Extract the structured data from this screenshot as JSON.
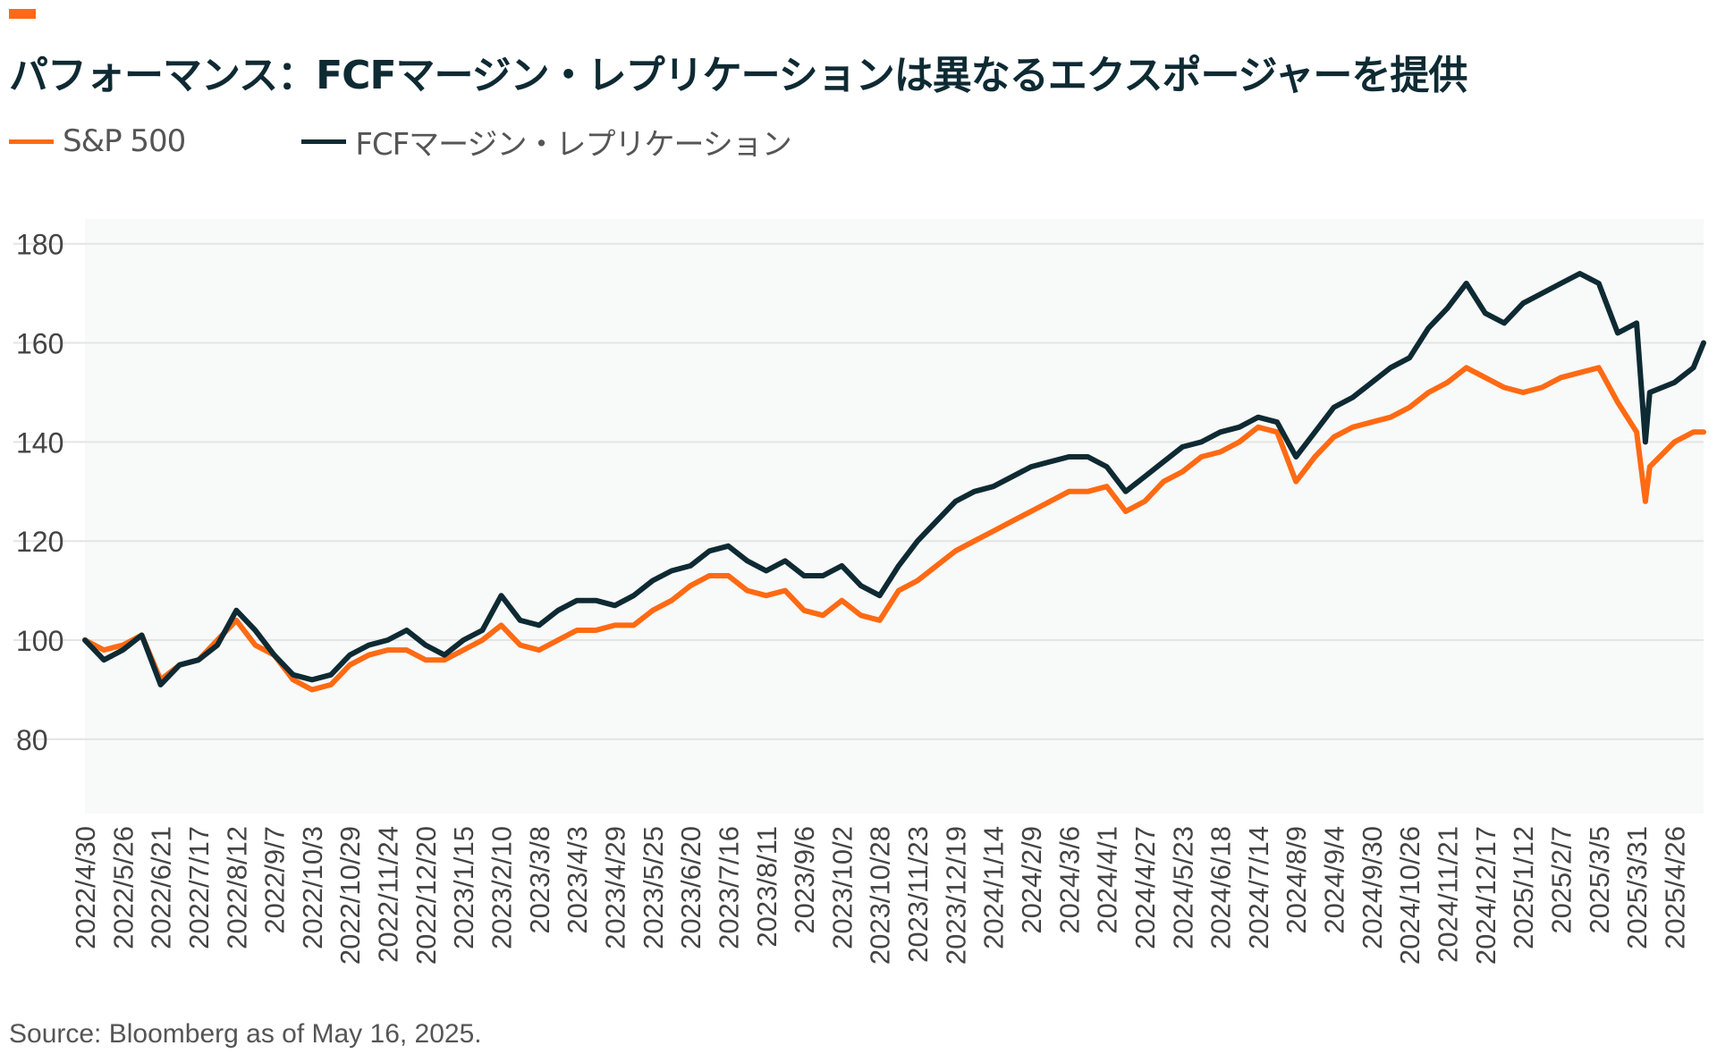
{
  "header": {
    "title": "パフォーマンス：FCFマージン・レプリケーションは異なるエクスポージャーを提供"
  },
  "colors": {
    "accent": "#ff6a13",
    "sp500": "#ff6a13",
    "fcf": "#0e2a33",
    "plot_bg": "#f8f9f9",
    "grid": "#e4e4e4"
  },
  "footer": {
    "source": "Source: Bloomberg as of May 16, 2025."
  },
  "chart_data": {
    "type": "line",
    "title": "パフォーマンス：FCFマージン・レプリケーションは異なるエクスポージャーを提供",
    "xlabel": "",
    "ylabel": "",
    "ylim": [
      65,
      185
    ],
    "yticks": [
      80,
      100,
      120,
      140,
      160,
      180
    ],
    "grid": true,
    "legend_position": "top-left",
    "x_tick_labels": [
      "2022/4/30",
      "2022/5/26",
      "2022/6/21",
      "2022/7/17",
      "2022/8/12",
      "2022/9/7",
      "2022/10/3",
      "2022/10/29",
      "2022/11/24",
      "2022/12/20",
      "2023/1/15",
      "2023/2/10",
      "2023/3/8",
      "2023/4/3",
      "2023/4/29",
      "2023/5/25",
      "2023/6/20",
      "2023/7/16",
      "2023/8/11",
      "2023/9/6",
      "2023/10/2",
      "2023/10/28",
      "2023/11/23",
      "2023/12/19",
      "2024/1/14",
      "2024/2/9",
      "2024/3/6",
      "2024/4/1",
      "2024/4/27",
      "2024/5/23",
      "2024/6/18",
      "2024/7/14",
      "2024/8/9",
      "2024/9/4",
      "2024/9/30",
      "2024/10/26",
      "2024/11/21",
      "2024/12/17",
      "2025/1/12",
      "2025/2/7",
      "2025/3/5",
      "2025/3/31",
      "2025/4/26"
    ],
    "x": [
      "2022/4/30",
      "2022/5/13",
      "2022/5/26",
      "2022/6/8",
      "2022/6/21",
      "2022/7/4",
      "2022/7/17",
      "2022/7/30",
      "2022/8/12",
      "2022/8/25",
      "2022/9/7",
      "2022/9/20",
      "2022/10/3",
      "2022/10/16",
      "2022/10/29",
      "2022/11/11",
      "2022/11/24",
      "2022/12/7",
      "2022/12/20",
      "2023/1/2",
      "2023/1/15",
      "2023/1/28",
      "2023/2/10",
      "2023/2/23",
      "2023/3/8",
      "2023/3/21",
      "2023/4/3",
      "2023/4/16",
      "2023/4/29",
      "2023/5/12",
      "2023/5/25",
      "2023/6/7",
      "2023/6/20",
      "2023/7/3",
      "2023/7/16",
      "2023/7/29",
      "2023/8/11",
      "2023/8/24",
      "2023/9/6",
      "2023/9/19",
      "2023/10/2",
      "2023/10/15",
      "2023/10/28",
      "2023/11/10",
      "2023/11/23",
      "2023/12/6",
      "2023/12/19",
      "2024/1/1",
      "2024/1/14",
      "2024/1/27",
      "2024/2/9",
      "2024/2/22",
      "2024/3/6",
      "2024/3/19",
      "2024/4/1",
      "2024/4/14",
      "2024/4/27",
      "2024/5/10",
      "2024/5/23",
      "2024/6/5",
      "2024/6/18",
      "2024/7/1",
      "2024/7/14",
      "2024/7/27",
      "2024/8/9",
      "2024/8/22",
      "2024/9/4",
      "2024/9/17",
      "2024/9/30",
      "2024/10/13",
      "2024/10/26",
      "2024/11/8",
      "2024/11/21",
      "2024/12/4",
      "2024/12/17",
      "2024/12/30",
      "2025/1/12",
      "2025/1/25",
      "2025/2/7",
      "2025/2/20",
      "2025/3/5",
      "2025/3/18",
      "2025/3/31",
      "2025/4/6",
      "2025/4/9",
      "2025/4/26",
      "2025/5/9",
      "2025/5/16"
    ],
    "series": [
      {
        "name": "S&P 500",
        "color": "#ff6a13",
        "values": [
          100,
          98,
          99,
          101,
          92,
          95,
          96,
          100,
          104,
          99,
          97,
          92,
          90,
          91,
          95,
          97,
          98,
          98,
          96,
          96,
          98,
          100,
          103,
          99,
          98,
          100,
          102,
          102,
          103,
          103,
          106,
          108,
          111,
          113,
          113,
          110,
          109,
          110,
          106,
          105,
          108,
          105,
          104,
          110,
          112,
          115,
          118,
          120,
          122,
          124,
          126,
          128,
          130,
          130,
          131,
          126,
          128,
          132,
          134,
          137,
          138,
          140,
          143,
          142,
          132,
          137,
          141,
          143,
          144,
          145,
          147,
          150,
          152,
          155,
          153,
          151,
          150,
          151,
          153,
          154,
          155,
          148,
          142,
          128,
          135,
          140,
          142,
          142
        ]
      },
      {
        "name": "FCFマージン・レプリケーション",
        "color": "#0e2a33",
        "values": [
          100,
          96,
          98,
          101,
          91,
          95,
          96,
          99,
          106,
          102,
          97,
          93,
          92,
          93,
          97,
          99,
          100,
          102,
          99,
          97,
          100,
          102,
          109,
          104,
          103,
          106,
          108,
          108,
          107,
          109,
          112,
          114,
          115,
          118,
          119,
          116,
          114,
          116,
          113,
          113,
          115,
          111,
          109,
          115,
          120,
          124,
          128,
          130,
          131,
          133,
          135,
          136,
          137,
          137,
          135,
          130,
          133,
          136,
          139,
          140,
          142,
          143,
          145,
          144,
          137,
          142,
          147,
          149,
          152,
          155,
          157,
          163,
          167,
          172,
          166,
          164,
          168,
          170,
          172,
          174,
          172,
          162,
          164,
          140,
          150,
          152,
          155,
          160
        ]
      }
    ]
  }
}
